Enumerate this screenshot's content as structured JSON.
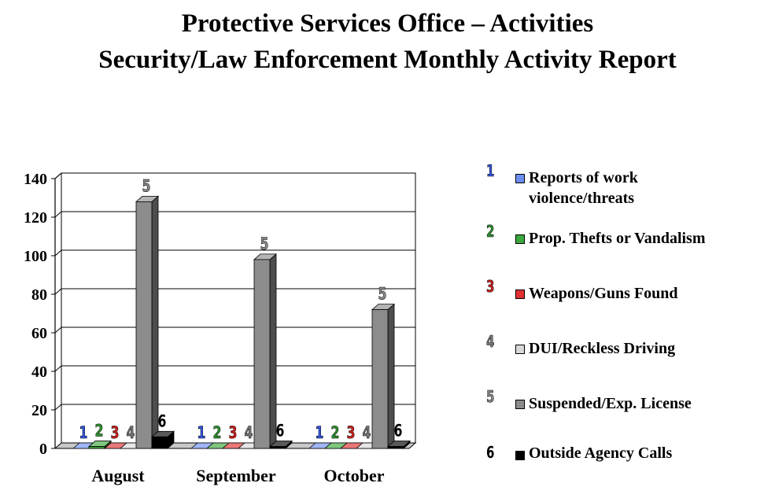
{
  "title_line1": "Protective Services Office – Activities",
  "title_line2": "Security/Law Enforcement Monthly Activity Report",
  "chart_data": {
    "type": "bar",
    "categories": [
      "August",
      "September",
      "October"
    ],
    "ylim": [
      0,
      140
    ],
    "yticks": [
      0,
      20,
      40,
      60,
      80,
      100,
      120,
      140
    ],
    "grid": true,
    "legend_position": "right",
    "series": [
      {
        "name": "Reports of work violence/threats",
        "label": "1",
        "color": "#6b8ef0",
        "label_color": "#3355dd",
        "values": [
          0,
          0,
          0
        ]
      },
      {
        "name": "Prop. Thefts or Vandalism",
        "label": "2",
        "color": "#3aa83a",
        "label_color": "#2f8f2f",
        "values": [
          1,
          0,
          0
        ]
      },
      {
        "name": "Weapons/Guns Found",
        "label": "3",
        "color": "#e03030",
        "label_color": "#cc2020",
        "values": [
          0,
          0,
          0
        ]
      },
      {
        "name": "DUI/Reckless Driving",
        "label": "4",
        "color": "#d9d9d9",
        "label_color": "#777777",
        "values": [
          0,
          0,
          0
        ]
      },
      {
        "name": "Suspended/Exp. License",
        "label": "5",
        "color": "#8c8c8c",
        "label_color": "#888888",
        "values": [
          128,
          98,
          72
        ]
      },
      {
        "name": "Outside Agency Calls",
        "label": "6",
        "color": "#000000",
        "label_color": "#000000",
        "values": [
          6,
          1,
          1
        ]
      }
    ]
  }
}
